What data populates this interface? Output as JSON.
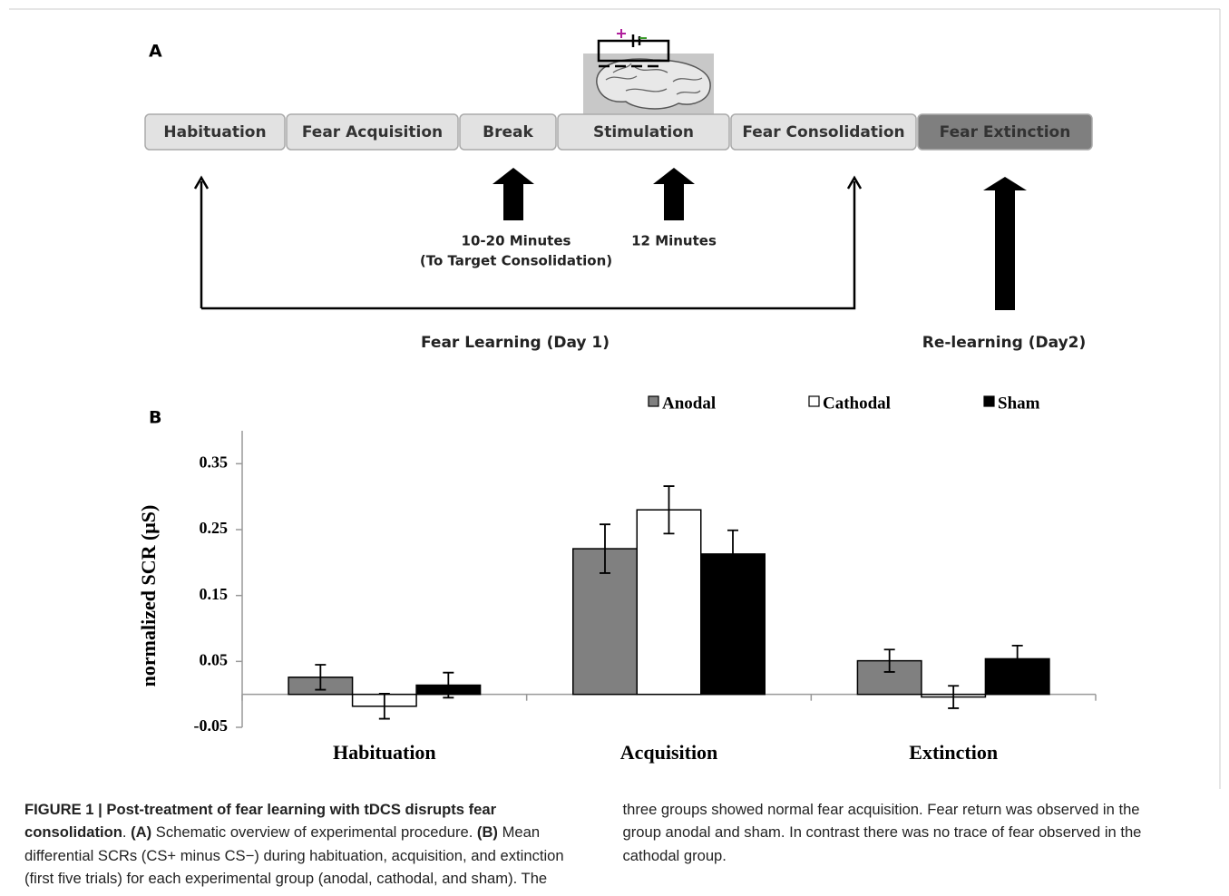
{
  "panel_a": {
    "label": "A",
    "steps": [
      {
        "text": "Habituation",
        "color": "#e2e2e2"
      },
      {
        "text": "Fear Acquisition",
        "color": "#e2e2e2"
      },
      {
        "text": "Break",
        "color": "#e2e2e2"
      },
      {
        "text": "Stimulation",
        "color": "#e2e2e2"
      },
      {
        "text": "Fear Consolidation",
        "color": "#e2e2e2"
      },
      {
        "text": "Fear Extinction",
        "color": "#7f7f7f"
      }
    ],
    "break_note": [
      "10-20 Minutes",
      "(To Target Consolidation)"
    ],
    "stimulation_note": "12 Minutes",
    "day1": "Fear Learning (Day 1)",
    "day2": "Re-learning (Day2)"
  },
  "chart_data": {
    "type": "bar",
    "label": "B",
    "ylabel": "normalized SCR (μS)",
    "categories": [
      "Habituation",
      "Acquisition",
      "Extinction"
    ],
    "series": [
      {
        "name": "Anodal",
        "color": "#808080",
        "values": [
          0.026,
          0.221,
          0.051
        ],
        "errors": [
          0.019,
          0.037,
          0.017
        ]
      },
      {
        "name": "Cathodal",
        "color": "#ffffff",
        "values": [
          -0.018,
          0.28,
          -0.004
        ],
        "errors": [
          0.019,
          0.036,
          0.017
        ]
      },
      {
        "name": "Sham",
        "color": "#000000",
        "values": [
          0.014,
          0.213,
          0.054
        ],
        "errors": [
          0.019,
          0.036,
          0.02
        ]
      }
    ],
    "ylim": [
      -0.05,
      0.4
    ],
    "yticks": [
      -0.05,
      0.05,
      0.15,
      0.25,
      0.35
    ],
    "legend": "top"
  },
  "caption": [
    {
      "text": "FIGURE 1 | Post-treatment of fear learning with tDCS disrupts fear consolidation",
      "bold": true
    },
    {
      "text": ". ",
      "bold": false
    },
    {
      "text": "(A)",
      "bold": true
    },
    {
      "text": " Schematic overview of experimental procedure. ",
      "bold": false
    },
    {
      "text": "(B)",
      "bold": true
    },
    {
      "text": " Mean differential SCRs (CS+ minus CS−) during habituation, acquisition, and extinction (first five trials) for each experimental group (anodal, cathodal, and sham). The three groups showed normal fear acquisition. Fear return was observed in the group anodal and sham. In contrast there was no trace of fear observed in the cathodal group.",
      "bold": false
    }
  ]
}
